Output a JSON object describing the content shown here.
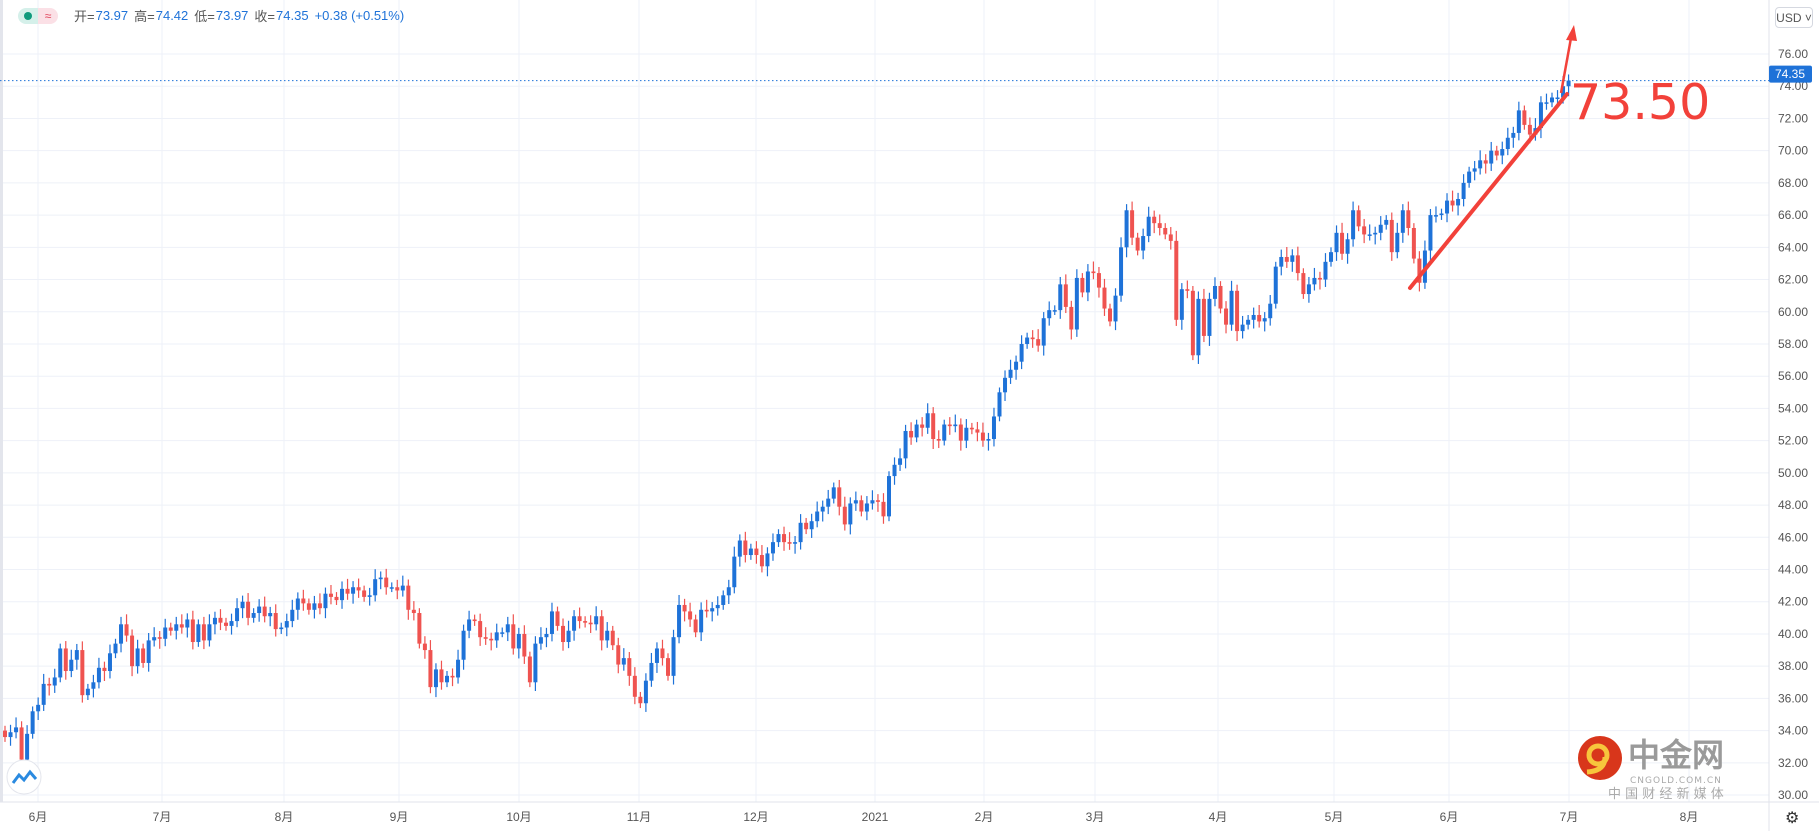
{
  "legend": {
    "open_label": "开=",
    "open": "73.97",
    "high_label": "高=",
    "high": "74.42",
    "low_label": "低=",
    "low": "73.97",
    "close_label": "收=",
    "close": "74.35",
    "change": "+0.38 (+0.51%)"
  },
  "currency_button": "USD ˅",
  "annotation_text": "73.50",
  "watermark": {
    "brand": "中金网",
    "domain": "CNGOLD.COM.CN",
    "slogan": "中 国 财 经 新 媒 体"
  },
  "colors": {
    "up": "#1e72d8",
    "down": "#ef5350",
    "annotation": "#f2413a",
    "grid": "#eef1f8",
    "price_line": "#1e72d8"
  },
  "chart_data": {
    "type": "candlestick",
    "x_tick_labels": [
      "6月",
      "7月",
      "8月",
      "9月",
      "10月",
      "11月",
      "12月",
      "2021",
      "2月",
      "3月",
      "4月",
      "5月",
      "6月",
      "7月",
      "8月"
    ],
    "y_ticks": [
      "30.00",
      "32.00",
      "34.00",
      "36.00",
      "38.00",
      "40.00",
      "42.00",
      "44.00",
      "46.00",
      "48.00",
      "50.00",
      "52.00",
      "54.00",
      "56.00",
      "58.00",
      "60.00",
      "62.00",
      "64.00",
      "66.00",
      "68.00",
      "70.00",
      "72.00",
      "74.00",
      "76.00"
    ],
    "ylim": [
      29.5,
      78
    ],
    "grid": true,
    "last_price": "74.35",
    "first_open": 34.0,
    "closes": [
      33.6,
      33.9,
      34.2,
      32.2,
      33.8,
      35.2,
      35.6,
      36.9,
      36.8,
      37.3,
      39.1,
      37.7,
      38.4,
      39.0,
      36.2,
      36.6,
      37.0,
      37.9,
      37.7,
      38.8,
      39.4,
      40.6,
      39.9,
      38.0,
      39.1,
      38.2,
      39.6,
      39.8,
      39.7,
      40.4,
      40.2,
      40.6,
      40.4,
      40.9,
      39.5,
      40.6,
      39.6,
      40.6,
      41.0,
      40.7,
      40.5,
      40.8,
      41.6,
      42.0,
      41.0,
      41.3,
      41.7,
      41.1,
      41.3,
      40.3,
      40.4,
      40.8,
      41.5,
      42.2,
      41.9,
      41.5,
      41.9,
      41.6,
      42.5,
      42.3,
      42.1,
      42.8,
      42.5,
      42.9,
      42.7,
      42.3,
      42.4,
      43.4,
      43.5,
      42.9,
      42.9,
      42.7,
      43.0,
      41.5,
      41.3,
      39.4,
      39.0,
      36.7,
      37.8,
      37.0,
      37.4,
      37.3,
      38.4,
      40.2,
      40.9,
      40.8,
      39.8,
      39.7,
      39.6,
      40.1,
      40.1,
      40.6,
      39.1,
      40.0,
      38.6,
      37.0,
      39.4,
      39.8,
      40.0,
      41.4,
      40.5,
      39.5,
      40.2,
      41.1,
      40.8,
      40.7,
      40.6,
      41.1,
      39.6,
      40.2,
      39.3,
      38.1,
      38.5,
      37.4,
      36.1,
      35.7,
      37.1,
      38.2,
      39.1,
      38.5,
      37.4,
      39.8,
      41.8,
      41.4,
      40.9,
      40.1,
      41.5,
      41.4,
      41.6,
      41.8,
      42.4,
      42.9,
      44.8,
      45.8,
      44.9,
      45.3,
      44.9,
      44.2,
      45.0,
      45.7,
      46.2,
      45.7,
      45.6,
      45.7,
      46.9,
      46.5,
      47.0,
      47.6,
      47.9,
      48.4,
      49.1,
      47.9,
      46.8,
      48.1,
      48.3,
      47.6,
      48.1,
      48.3,
      48.2,
      47.3,
      49.8,
      50.5,
      50.9,
      52.6,
      52.2,
      53.0,
      52.8,
      53.7,
      52.1,
      52.0,
      53.0,
      52.9,
      53.0,
      52.0,
      52.8,
      52.7,
      52.5,
      52.0,
      52.1,
      53.5,
      55.0,
      55.9,
      56.4,
      56.9,
      58.0,
      58.4,
      58.3,
      57.9,
      59.6,
      60.1,
      60.1,
      61.7,
      60.3,
      58.9,
      62.1,
      61.2,
      62.5,
      62.4,
      61.5,
      60.2,
      59.4,
      61.0,
      64.0,
      66.3,
      64.6,
      63.8,
      64.7,
      65.9,
      65.5,
      65.2,
      64.8,
      64.4,
      59.5,
      61.4,
      61.3,
      57.3,
      60.8,
      58.5,
      60.8,
      61.6,
      60.2,
      59.2,
      61.3,
      58.8,
      59.2,
      59.5,
      59.8,
      59.4,
      59.6,
      60.5,
      62.8,
      63.4,
      63.1,
      63.5,
      62.4,
      61.1,
      61.7,
      62.1,
      62.0,
      63.1,
      63.7,
      64.9,
      63.6,
      64.5,
      66.3,
      65.3,
      64.8,
      64.8,
      64.9,
      65.4,
      65.7,
      63.7,
      64.9,
      66.3,
      65.2,
      63.3,
      61.8,
      63.8,
      66.0,
      66.0,
      66.1,
      66.9,
      66.6,
      67.0,
      68.0,
      68.7,
      68.9,
      69.4,
      69.2,
      70.0,
      69.7,
      70.1,
      70.8,
      71.1,
      72.5,
      71.6,
      71.0,
      71.4,
      73.0,
      73.0,
      73.3,
      73.3,
      74.0,
      74.35
    ]
  }
}
